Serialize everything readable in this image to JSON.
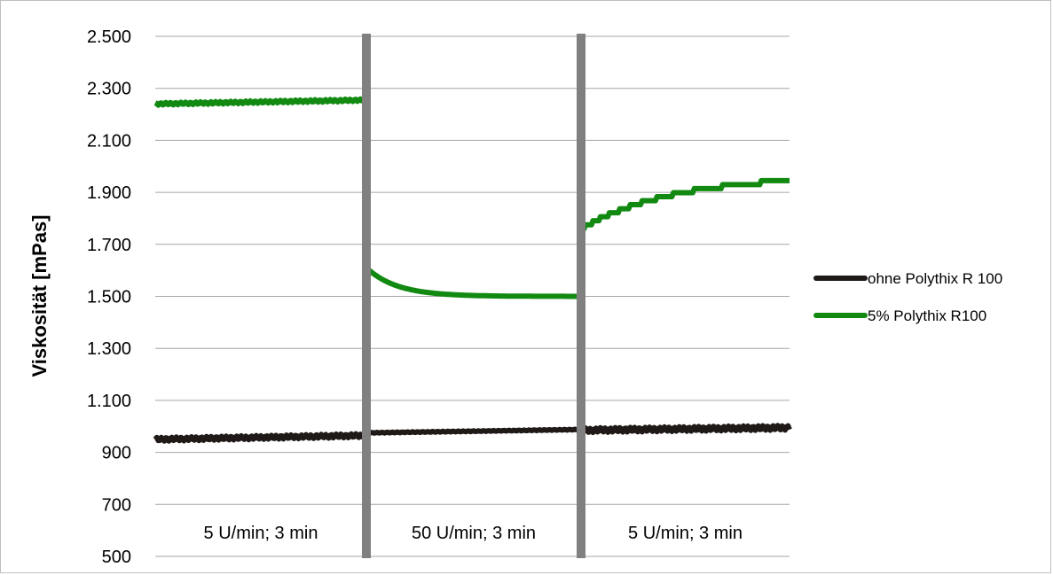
{
  "chart_data": {
    "type": "line",
    "ylabel": "Viskosität [mPas]",
    "ylim": [
      500,
      2500
    ],
    "yticks": [
      500,
      700,
      900,
      1100,
      1300,
      1500,
      1700,
      1900,
      2100,
      2300,
      2500
    ],
    "ytick_labels": [
      "500",
      "700",
      "900",
      "1.100",
      "1.300",
      "1.500",
      "1.700",
      "1.900",
      "2.100",
      "2.300",
      "2.500"
    ],
    "grid": true,
    "legend_position": "right",
    "segments": [
      {
        "label": "5 U/min; 3 min"
      },
      {
        "label": "50 U/min; 3 min"
      },
      {
        "label": "5 U/min; 3 min"
      }
    ],
    "series": [
      {
        "name": "ohne Polythix R 100",
        "color": "#1f1a17",
        "segments": [
          {
            "start": 950,
            "end": 965,
            "noise": 15
          },
          {
            "start": 975,
            "end": 988,
            "noise": 3
          },
          {
            "start": 985,
            "end": 995,
            "noise": 18
          }
        ]
      },
      {
        "name": "5% Polythix R100",
        "color": "#128a12",
        "segments": [
          {
            "start": 2240,
            "end": 2255,
            "noise": 10,
            "shape": "flat"
          },
          {
            "start": 1610,
            "end": 1500,
            "shape": "decay"
          },
          {
            "start": 1760,
            "end": 1945,
            "shape": "rise"
          }
        ]
      }
    ],
    "divider_color": "#808080"
  }
}
